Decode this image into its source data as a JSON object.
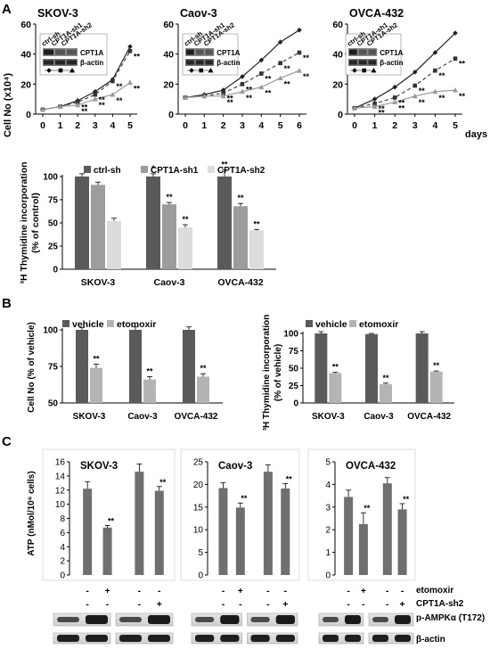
{
  "figure": {
    "panel_labels": [
      "A",
      "B",
      "C"
    ],
    "shared": {
      "days_label": "days",
      "sig": "**",
      "sig_single": "*",
      "actin_label": "β-actin",
      "cpt1a_label": "CPT1A",
      "pampk_label": "p-AMPKα (T172)",
      "etomoxir_label": "etomoxir",
      "sh2_label": "CPT1A-sh2",
      "plus": "+",
      "minus": "-"
    },
    "growth_legend": [
      "ctrl-sh",
      "CPT1A-sh1",
      "CPT1A-sh2"
    ]
  },
  "chart_data": [
    {
      "id": "A_growth_skov3",
      "type": "line",
      "title": "SKOV-3",
      "ylabel": "Cell No (x10⁴)",
      "x": [
        0,
        1,
        2,
        3,
        4,
        5
      ],
      "ylim": [
        0,
        60
      ],
      "yticks": [
        0,
        20,
        40,
        60
      ],
      "series": [
        {
          "name": "ctrl-sh",
          "values": [
            3,
            5,
            9,
            15,
            23,
            45
          ]
        },
        {
          "name": "CPT1A-sh1",
          "values": [
            3,
            5,
            8,
            13,
            22,
            42
          ]
        },
        {
          "name": "CPT1A-sh2",
          "values": [
            3,
            5,
            6,
            10,
            13,
            21
          ]
        }
      ],
      "sig_points": [
        [
          2,
          "**"
        ],
        [
          3,
          "**"
        ],
        [
          4,
          "**"
        ],
        [
          5,
          "**"
        ]
      ]
    },
    {
      "id": "A_growth_caov3",
      "type": "line",
      "title": "Caov-3",
      "x": [
        0,
        1,
        2,
        3,
        4,
        5,
        6
      ],
      "ylim": [
        0,
        60
      ],
      "yticks": [
        0,
        20,
        40,
        60
      ],
      "series": [
        {
          "name": "ctrl-sh",
          "values": [
            11,
            13,
            16,
            25,
            36,
            48,
            56
          ]
        },
        {
          "name": "CPT1A-sh1",
          "values": [
            11,
            12,
            14,
            20,
            27,
            34,
            41
          ]
        },
        {
          "name": "CPT1A-sh2",
          "values": [
            11,
            12,
            12,
            15,
            18,
            24,
            29
          ]
        }
      ],
      "sig_points": [
        [
          2,
          "**"
        ],
        [
          3,
          "**"
        ],
        [
          4,
          "**"
        ],
        [
          5,
          "**"
        ],
        [
          6,
          "**"
        ]
      ]
    },
    {
      "id": "A_growth_ovca432",
      "type": "line",
      "title": "OVCA-432",
      "x": [
        0,
        1,
        2,
        3,
        4,
        5
      ],
      "xlabel": "days",
      "ylim": [
        0,
        60
      ],
      "yticks": [
        0,
        20,
        40,
        60
      ],
      "series": [
        {
          "name": "ctrl-sh",
          "values": [
            4,
            10,
            18,
            28,
            41,
            54
          ]
        },
        {
          "name": "CPT1A-sh1",
          "values": [
            4,
            7,
            11,
            19,
            29,
            37
          ]
        },
        {
          "name": "CPT1A-sh2",
          "values": [
            4,
            5,
            8,
            12,
            15,
            16
          ]
        }
      ],
      "sig_points": [
        [
          1,
          "**"
        ],
        [
          2,
          "**"
        ],
        [
          3,
          "**"
        ],
        [
          4,
          "**"
        ],
        [
          5,
          "**"
        ]
      ]
    },
    {
      "id": "A_thymidine",
      "type": "bar",
      "ylabel_line1": "³H Thymidine incorporation",
      "ylabel_line2": "(% of control)",
      "categories": [
        "SKOV-3",
        "Caov-3",
        "OVCA-432"
      ],
      "ylim": [
        0,
        100
      ],
      "yticks": [
        0,
        25,
        50,
        75,
        100
      ],
      "series": [
        {
          "name": "ctrl-sh",
          "values": [
            100,
            100,
            100
          ]
        },
        {
          "name": "CPT1A-sh1",
          "values": [
            91,
            70,
            68
          ]
        },
        {
          "name": "CPT1A-sh2",
          "values": [
            52,
            45,
            42
          ]
        }
      ],
      "errors": [
        [
          3,
          3,
          7
        ],
        [
          3,
          2,
          3
        ],
        [
          3,
          3,
          1
        ]
      ],
      "annotations": [
        [
          "",
          "*",
          "**"
        ],
        [
          "",
          "**",
          "**"
        ],
        [
          "",
          "**",
          "**"
        ]
      ]
    },
    {
      "id": "B_cellno",
      "type": "bar",
      "ylabel": "Cell No (% of vehicle)",
      "categories": [
        "SKOV-3",
        "Caov-3",
        "OVCA-432"
      ],
      "ylim": [
        50,
        100
      ],
      "yticks": [
        50,
        75,
        100
      ],
      "series": [
        {
          "name": "vehicle",
          "values": [
            100,
            100,
            100
          ]
        },
        {
          "name": "etomoxir",
          "values": [
            74,
            66,
            68
          ]
        }
      ],
      "errors": [
        [
          1.5,
          2,
          2
        ],
        [
          2.5,
          2,
          2
        ]
      ],
      "annotations": [
        [
          "",
          "",
          ""
        ],
        [
          "**",
          "**",
          "**"
        ]
      ]
    },
    {
      "id": "B_thymidine",
      "type": "bar",
      "ylabel_line1": "³H Thymidine incorporation",
      "ylabel_line2": "(% of vehicle)",
      "categories": [
        "SKOV-3",
        "Caov-3",
        "OVCA-432"
      ],
      "ylim": [
        0,
        100
      ],
      "yticks": [
        0,
        25,
        50,
        75,
        100
      ],
      "series": [
        {
          "name": "vehicle",
          "values": [
            100,
            99,
            100
          ]
        },
        {
          "name": "etomoxir",
          "values": [
            43,
            27,
            45
          ]
        }
      ],
      "errors": [
        [
          2.5,
          1,
          2.5
        ],
        [
          1,
          1.5,
          1
        ]
      ],
      "annotations": [
        [
          "",
          "",
          ""
        ],
        [
          "**",
          "**",
          "**"
        ]
      ]
    },
    {
      "id": "C_atp_skov3",
      "type": "bar",
      "title": "SKOV-3",
      "ylabel": "ATP (nMol/10⁶ cells)",
      "ylim": [
        0,
        16
      ],
      "yticks": [
        0,
        2,
        4,
        6,
        8,
        10,
        12,
        14,
        16
      ],
      "values": [
        12.2,
        6.7,
        14.6,
        11.9
      ],
      "errors": [
        1.0,
        0.3,
        1.1,
        0.6
      ],
      "annotations": [
        "",
        "**",
        "",
        "**"
      ],
      "etomoxir": [
        "-",
        "+",
        "-",
        "-"
      ],
      "sh2": [
        "-",
        "-",
        "-",
        "+"
      ]
    },
    {
      "id": "C_atp_caov3",
      "type": "bar",
      "title": "Caov-3",
      "ylim": [
        0,
        25
      ],
      "yticks": [
        0,
        5,
        10,
        15,
        20,
        25
      ],
      "values": [
        19.2,
        14.9,
        22.8,
        19.1
      ],
      "errors": [
        1.2,
        1.0,
        1.5,
        1.1
      ],
      "annotations": [
        "",
        "**",
        "",
        "**"
      ],
      "etomoxir": [
        "-",
        "+",
        "-",
        "-"
      ],
      "sh2": [
        "-",
        "-",
        "-",
        "+"
      ]
    },
    {
      "id": "C_atp_ovca432",
      "type": "bar",
      "title": "OVCA-432",
      "ylim": [
        0,
        5
      ],
      "yticks": [
        0,
        1,
        2,
        3,
        4,
        5
      ],
      "values": [
        3.45,
        2.25,
        4.05,
        2.9
      ],
      "errors": [
        0.3,
        0.5,
        0.25,
        0.25
      ],
      "annotations": [
        "",
        "**",
        "",
        "**"
      ],
      "etomoxir": [
        "-",
        "+",
        "-",
        "-"
      ],
      "sh2": [
        "-",
        "-",
        "-",
        "+"
      ]
    }
  ]
}
